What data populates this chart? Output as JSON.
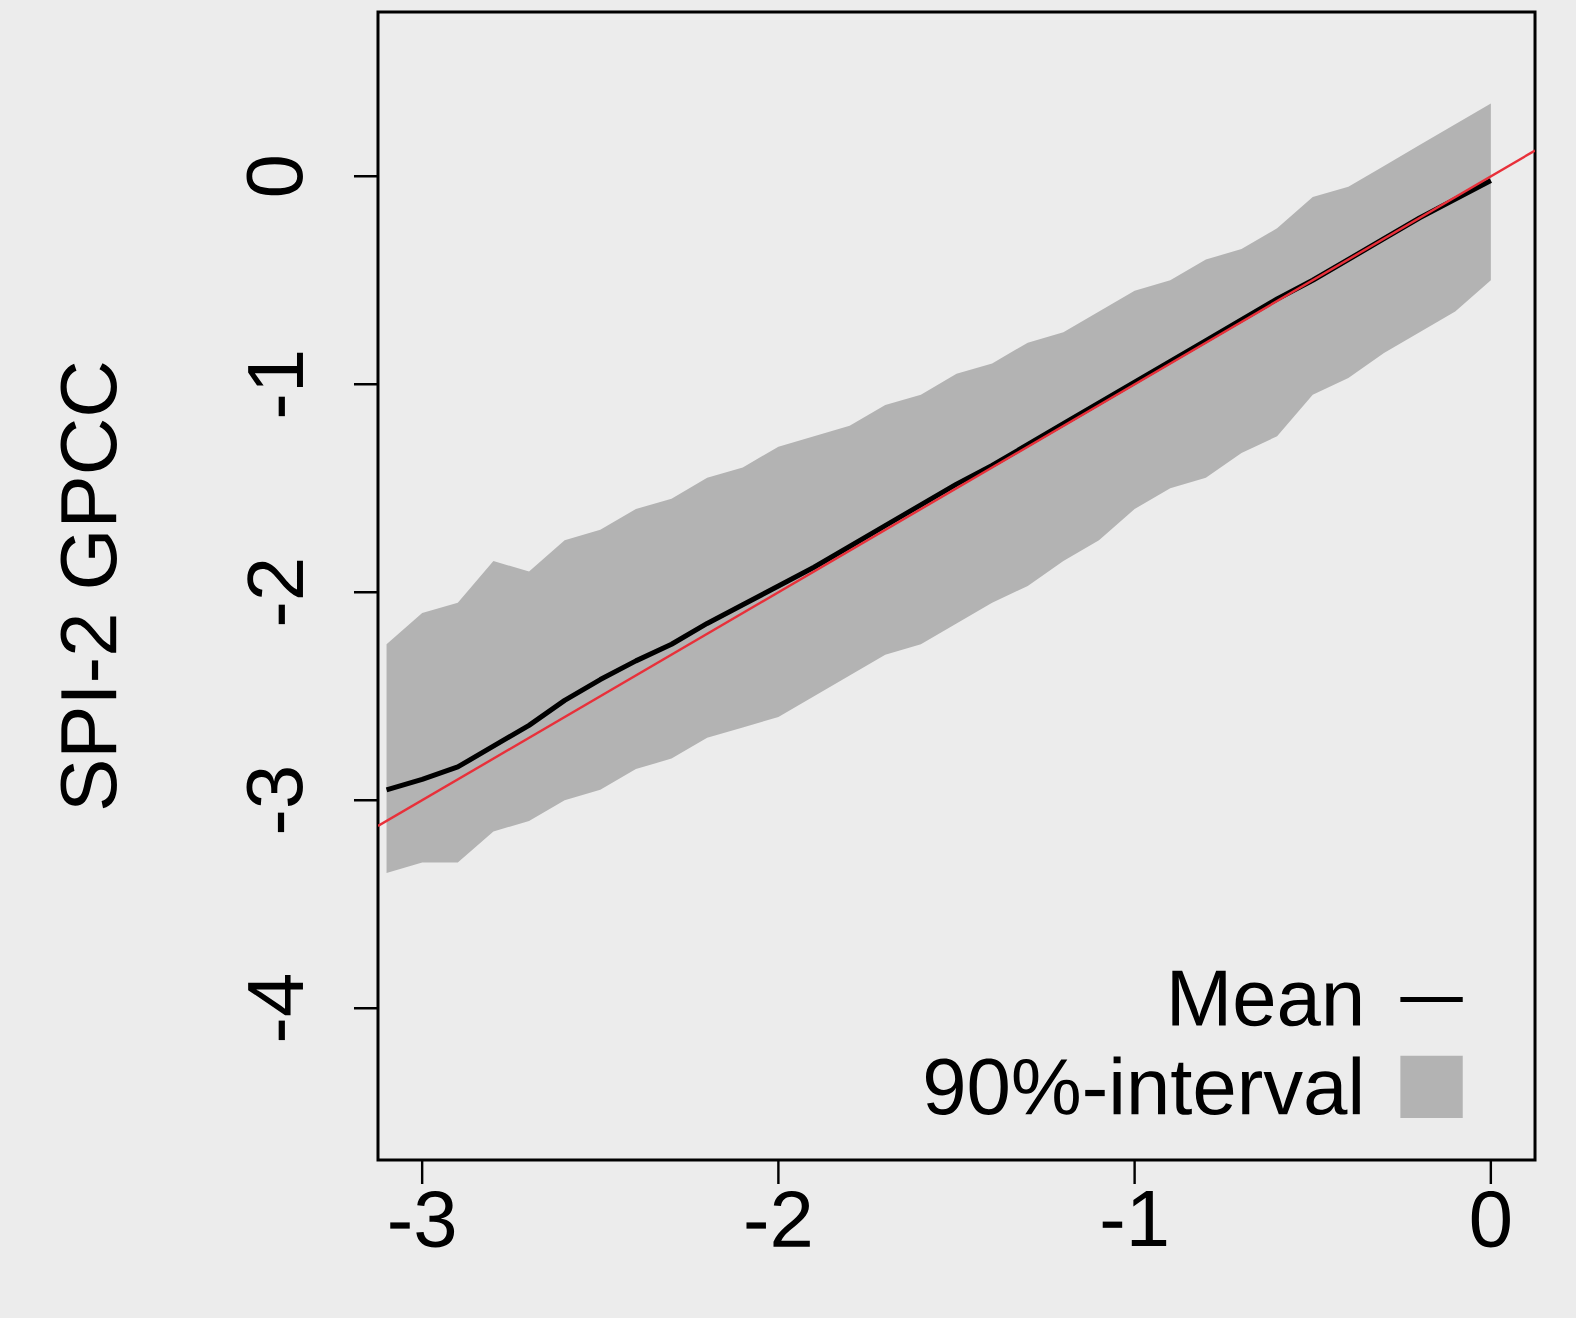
{
  "chart_data": {
    "type": "line",
    "ylabel": "SPI-2 GPCC",
    "annotations": [
      "90%-interval"
    ],
    "xlim": [
      -3.124,
      0.124
    ],
    "ylim": [
      -4.73,
      0.79
    ],
    "xticks": [
      -3,
      -2,
      -1,
      0
    ],
    "yticks": [
      -4,
      -3,
      -2,
      -1,
      0
    ],
    "grid": false,
    "legend": "bottom right",
    "marker": "none",
    "line_style": "solid",
    "x": [
      -3.1,
      -3.0,
      -2.9,
      -2.8,
      -2.7,
      -2.6,
      -2.5,
      -2.4,
      -2.3,
      -2.2,
      -2.1,
      -2.0,
      -1.9,
      -1.8,
      -1.7,
      -1.6,
      -1.5,
      -1.4,
      -1.3,
      -1.2,
      -1.1,
      -1.0,
      -0.9,
      -0.8,
      -0.7,
      -0.6,
      -0.5,
      -0.4,
      -0.3,
      -0.2,
      -0.1,
      0.0
    ],
    "series": [
      {
        "name": "Mean",
        "color": "#000000",
        "values": [
          -2.95,
          -2.9,
          -2.84,
          -2.74,
          -2.64,
          -2.52,
          -2.42,
          -2.33,
          -2.25,
          -2.15,
          -2.06,
          -1.97,
          -1.88,
          -1.78,
          -1.68,
          -1.58,
          -1.48,
          -1.39,
          -1.29,
          -1.19,
          -1.09,
          -0.99,
          -0.89,
          -0.79,
          -0.69,
          -0.59,
          -0.5,
          -0.4,
          -0.3,
          -0.2,
          -0.11,
          -0.02
        ],
        "upper": [
          -2.25,
          -2.1,
          -2.05,
          -1.85,
          -1.9,
          -1.75,
          -1.7,
          -1.6,
          -1.55,
          -1.45,
          -1.4,
          -1.3,
          -1.25,
          -1.2,
          -1.1,
          -1.05,
          -0.95,
          -0.9,
          -0.8,
          -0.75,
          -0.65,
          -0.55,
          -0.5,
          -0.4,
          -0.35,
          -0.25,
          -0.1,
          -0.05,
          0.05,
          0.15,
          0.25,
          0.35
        ],
        "lower": [
          -3.35,
          -3.3,
          -3.3,
          -3.15,
          -3.1,
          -3.0,
          -2.95,
          -2.85,
          -2.8,
          -2.7,
          -2.65,
          -2.6,
          -2.5,
          -2.4,
          -2.3,
          -2.25,
          -2.15,
          -2.05,
          -1.97,
          -1.85,
          -1.75,
          -1.6,
          -1.5,
          -1.45,
          -1.33,
          -1.25,
          -1.05,
          -0.97,
          -0.85,
          -0.75,
          -0.65,
          -0.5
        ]
      },
      {
        "color": "#e8303a",
        "x": [
          -3.124,
          0.124
        ],
        "values": [
          -3.124,
          0.124
        ]
      }
    ]
  }
}
